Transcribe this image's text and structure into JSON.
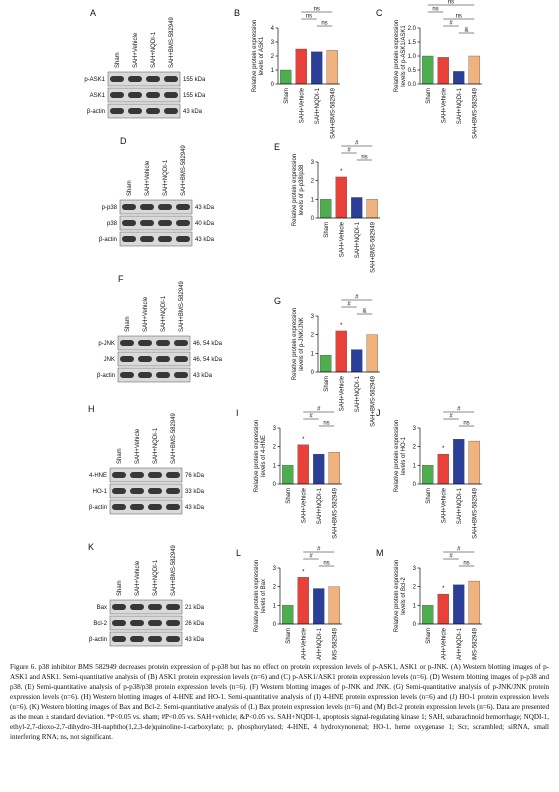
{
  "chart_data": [
    {
      "type": "bar",
      "letter": "B",
      "ylabel": [
        "Relative protein expression",
        "levels of ASK1"
      ],
      "categories": [
        "Sham",
        "SAH+Vehicle",
        "SAH+NQDI-1",
        "SAH+BMS-582949"
      ],
      "values": [
        1.0,
        2.5,
        2.3,
        2.4
      ],
      "colors": [
        "#4cae4c",
        "#e8413a",
        "#2b3f99",
        "#f2b27d"
      ],
      "ylim": [
        0,
        4
      ],
      "yticks": [
        0,
        1,
        2,
        3,
        4
      ],
      "annotations": [
        "ns",
        "ns",
        "ns"
      ]
    },
    {
      "type": "bar",
      "letter": "C",
      "ylabel": [
        "Relative protein expression",
        "levels of p-ASK1/ASK1"
      ],
      "categories": [
        "Sham",
        "SAH+Vehicle",
        "SAH+NQDI-1",
        "SAH+BMS-582949"
      ],
      "values": [
        1.0,
        0.95,
        0.45,
        1.0
      ],
      "colors": [
        "#4cae4c",
        "#e8413a",
        "#2b3f99",
        "#f2b27d"
      ],
      "ylim": [
        0,
        2
      ],
      "yticks": [
        {
          "value": 0,
          "label": "0.0"
        },
        0.5,
        {
          "value": 1,
          "label": "1.0"
        },
        1.5,
        {
          "value": 2,
          "label": "2.0"
        }
      ],
      "annotations": [
        "ns",
        "ns",
        "ns",
        "#",
        "&"
      ]
    },
    {
      "type": "bar",
      "letter": "E",
      "ylabel": [
        "Relative protein expression",
        "levels of p-p38/p38"
      ],
      "categories": [
        "Sham",
        "SAH+Vehicle",
        "SAH+NQDI-1",
        "SAH+BMS-582949"
      ],
      "values": [
        1.0,
        2.2,
        1.1,
        1.0
      ],
      "colors": [
        "#4cae4c",
        "#e8413a",
        "#2b3f99",
        "#f2b27d"
      ],
      "ylim": [
        0,
        3
      ],
      "yticks": [
        0,
        1,
        2,
        3
      ],
      "annotations": [
        "*",
        "#",
        "#",
        "ns"
      ]
    },
    {
      "type": "bar",
      "letter": "G",
      "ylabel": [
        "Relative protein expression",
        "levels of p-JNK/JNK"
      ],
      "categories": [
        "Sham",
        "SAH+Vehicle",
        "SAH+NQDI-1",
        "SAH+BMS-582949"
      ],
      "values": [
        0.9,
        2.2,
        1.2,
        2.0
      ],
      "colors": [
        "#4cae4c",
        "#e8413a",
        "#2b3f99",
        "#f2b27d"
      ],
      "ylim": [
        0,
        3
      ],
      "yticks": [
        0,
        1,
        2,
        3
      ],
      "annotations": [
        "*",
        "#",
        "#",
        "&"
      ]
    },
    {
      "type": "bar",
      "letter": "I",
      "ylabel": [
        "Relative protein expression",
        "levels of 4-HNE"
      ],
      "categories": [
        "Sham",
        "SAH+Vehicle",
        "SAH+NQDI-1",
        "SAH+BMS-582949"
      ],
      "values": [
        1.0,
        2.1,
        1.6,
        1.7
      ],
      "colors": [
        "#4cae4c",
        "#e8413a",
        "#2b3f99",
        "#f2b27d"
      ],
      "ylim": [
        0,
        3
      ],
      "yticks": [
        0,
        1,
        2,
        3
      ],
      "annotations": [
        "*",
        "#",
        "#",
        "ns"
      ]
    },
    {
      "type": "bar",
      "letter": "J",
      "ylabel": [
        "Relative protein expression",
        "levels of HO-1"
      ],
      "categories": [
        "Sham",
        "SAH+Vehicle",
        "SAH+NQDI-1",
        "SAH+BMS-582949"
      ],
      "values": [
        1.0,
        1.6,
        2.4,
        2.3
      ],
      "colors": [
        "#4cae4c",
        "#e8413a",
        "#2b3f99",
        "#f2b27d"
      ],
      "ylim": [
        0,
        3
      ],
      "yticks": [
        0,
        1,
        2,
        3
      ],
      "annotations": [
        "*",
        "#",
        "#",
        "ns"
      ]
    },
    {
      "type": "bar",
      "letter": "L",
      "ylabel": [
        "Relative protein expression",
        "levels of Bax"
      ],
      "categories": [
        "Sham",
        "SAH+Vehicle",
        "SAH+NQDI-1",
        "SAH+BMS-582949"
      ],
      "values": [
        1.0,
        2.5,
        1.9,
        2.0
      ],
      "colors": [
        "#4cae4c",
        "#e8413a",
        "#2b3f99",
        "#f2b27d"
      ],
      "ylim": [
        0,
        3
      ],
      "yticks": [
        0,
        1,
        2,
        3
      ],
      "annotations": [
        "*",
        "#",
        "#",
        "ns"
      ]
    },
    {
      "type": "bar",
      "letter": "M",
      "ylabel": [
        "Relative protein expression",
        "levels of Bcl-2"
      ],
      "categories": [
        "Sham",
        "SAH+Vehicle",
        "SAH+NQDI-1",
        "SAH+BMS-582949"
      ],
      "values": [
        1.0,
        1.6,
        2.1,
        2.3
      ],
      "colors": [
        "#4cae4c",
        "#e8413a",
        "#2b3f99",
        "#f2b27d"
      ],
      "ylim": [
        0,
        3
      ],
      "yticks": [
        0,
        1,
        2,
        3
      ],
      "annotations": [
        "*",
        "#",
        "#",
        "ns"
      ]
    }
  ],
  "blots": [
    {
      "letter": "A",
      "lanes": [
        "Sham",
        "SAH+Vehicle",
        "SAH+NQDI-1",
        "SAH+BMS-582949"
      ],
      "rows": [
        {
          "name": "p-ASK1",
          "kda": "155 kDa"
        },
        {
          "name": "ASK1",
          "kda": "155 kDa"
        },
        {
          "name": "β-actin",
          "kda": "43 kDa"
        }
      ]
    },
    {
      "letter": "D",
      "lanes": [
        "Sham",
        "SAH+Vehicle",
        "SAH+NQDI-1",
        "SAH+BMS-582949"
      ],
      "rows": [
        {
          "name": "p-p38",
          "kda": "43 kDa"
        },
        {
          "name": "p38",
          "kda": "40 kDa"
        },
        {
          "name": "β-actin",
          "kda": "43 kDa"
        }
      ]
    },
    {
      "letter": "F",
      "lanes": [
        "Sham",
        "SAH+Vehicle",
        "SAH+NQDI-1",
        "SAH+BMS-582949"
      ],
      "rows": [
        {
          "name": "p-JNK",
          "kda": "46, 54 kDa"
        },
        {
          "name": "JNK",
          "kda": "46, 54 kDa"
        },
        {
          "name": "β-actin",
          "kda": "43 kDa"
        }
      ]
    },
    {
      "letter": "H",
      "lanes": [
        "Sham",
        "SAH+Vehicle",
        "SAH+NQDI-1",
        "SAH+BMS-582949"
      ],
      "rows": [
        {
          "name": "4-HNE",
          "kda": "76 kDa"
        },
        {
          "name": "HO-1",
          "kda": "33 kDa"
        },
        {
          "name": "β-actin",
          "kda": "43 kDa"
        }
      ]
    },
    {
      "letter": "K",
      "lanes": [
        "Sham",
        "SAH+Vehicle",
        "SAH+NQDI-1",
        "SAH+BMS-582949"
      ],
      "rows": [
        {
          "name": "Bax",
          "kda": "21 kDa"
        },
        {
          "name": "Bcl-2",
          "kda": "26 kDa"
        },
        {
          "name": "β-actin",
          "kda": "43 kDa"
        }
      ]
    }
  ],
  "caption": "Figure 6. p38 inhibitor BMS 582949 decreases protein expression of p-p38 but has no effect on protein expression levels of p-ASK1, ASK1 or p-JNK. (A) Western blotting images of p-ASK1 and ASK1. Semi-quantitative analysis of (B) ASK1 protein expression levels (n=6) and (C) p-ASK1/ASK1 protein expression levels (n=6). (D) Western blotting images of p-p38 and p38. (E) Semi-quantitative analysis of p-p38/p38 protein expression levels (n=6). (F) Western blotting images of p-JNK and JNK. (G) Semi-quantitative analysis of p-JNK/JNK protein expression levels (n=6). (H) Western blotting images of 4-HNE and HO-1. Semi-quantitative analysis of (I) 4-HNE protein expression levels (n=6) and (J) HO-1 protein expression levels (n=6). (K) Western blotting images of Bax and Bcl-2. Semi-quantitative analysis of (L) Bax protein expression levels (n=6) and (M) Bcl-2 protein expression levels (n=6). Data are presented as the mean ± standard deviation. *P<0.05 vs. sham; #P<0.05 vs. SAH+vehicle; &P<0.05 vs. SAH+NQDI-1, apoptosis signal-regulating kinase 1; SAH, subarachnoid hemorrhage; NQDI-1, ethyl-2,7-dioxo-2,7-dihydro-3H-naphtho(1,2,3-de)quinoline-1-carboxylate; p, phosphorylated; 4-HNE, 4 hydroxynonenal; HO-1, heme oxygenase 1; Scr, scrambled; siRNA, small interfering RNA; ns, not significant."
}
